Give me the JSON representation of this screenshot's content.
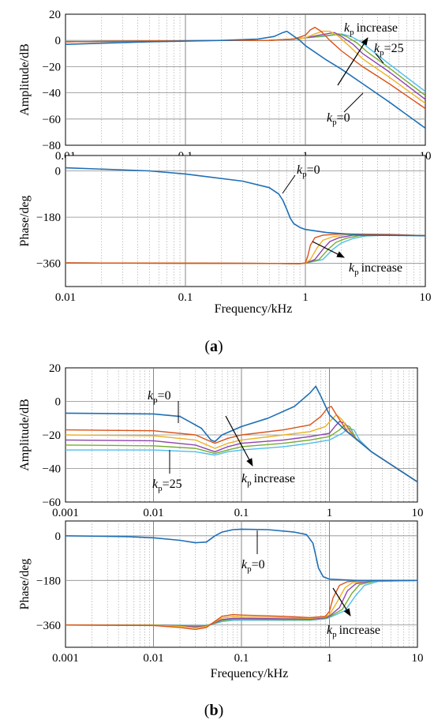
{
  "colors": {
    "kp0": "#1f6fb5",
    "series": [
      "#d95319",
      "#edb120",
      "#8e44ad",
      "#77ac30",
      "#4dbeee"
    ],
    "grid": "#9a9a9a",
    "axis": "#000000"
  },
  "chart_data": [
    {
      "panel": "a",
      "part": "amplitude",
      "type": "line",
      "xscale": "log",
      "xlim": [
        0.01,
        10
      ],
      "ylim": [
        -80,
        20
      ],
      "xticks": [
        "0.01",
        "0.1",
        "1",
        "10"
      ],
      "yticks": [
        "20",
        "0",
        "−20",
        "−40",
        "−60",
        "−80"
      ],
      "ylabel": "Amplitude/dB",
      "xlabel": "",
      "kp0": {
        "x": [
          0.01,
          0.05,
          0.2,
          0.4,
          0.55,
          0.65,
          0.7,
          0.78,
          0.9,
          1,
          1.5,
          2,
          3,
          5,
          10
        ],
        "y": [
          -3,
          -1,
          0,
          1,
          3,
          6,
          7,
          4,
          0,
          -4,
          -15,
          -22,
          -33,
          -47,
          -67
        ]
      },
      "others": [
        {
          "x": [
            0.01,
            0.2,
            0.5,
            0.8,
            1,
            1.1,
            1.2,
            1.35,
            1.6,
            2,
            3,
            5,
            10
          ],
          "y": [
            -1,
            0,
            0,
            1,
            4,
            8,
            10,
            7,
            0,
            -8,
            -20,
            -33,
            -52
          ]
        },
        {
          "x": [
            0.01,
            0.2,
            0.5,
            0.8,
            1,
            1.2,
            1.4,
            1.6,
            1.9,
            2.3,
            3,
            5,
            10
          ],
          "y": [
            -1,
            0,
            0,
            1,
            2,
            5,
            7,
            7,
            3,
            -4,
            -14,
            -28,
            -48
          ]
        },
        {
          "x": [
            0.01,
            0.2,
            0.5,
            0.8,
            1,
            1.3,
            1.5,
            1.75,
            2,
            2.5,
            3,
            5,
            10
          ],
          "y": [
            -1,
            0,
            0,
            1,
            2,
            4,
            5,
            6,
            3,
            -3,
            -10,
            -24,
            -45
          ]
        },
        {
          "x": [
            0.01,
            0.2,
            0.5,
            0.8,
            1,
            1.3,
            1.6,
            1.9,
            2.2,
            2.7,
            3.3,
            5,
            10
          ],
          "y": [
            -1,
            0,
            0,
            1,
            2,
            3,
            4,
            5,
            3,
            -2,
            -9,
            -21,
            -42
          ]
        },
        {
          "x": [
            0.01,
            0.2,
            0.5,
            0.8,
            1,
            1.4,
            1.7,
            2,
            2.4,
            2.9,
            3.5,
            5,
            10
          ],
          "y": [
            -1,
            0,
            0,
            1,
            2,
            3,
            4,
            5,
            3,
            -1,
            -7,
            -18,
            -39
          ]
        }
      ],
      "annotations": {
        "kp_increase": "increase",
        "kp25": "=25",
        "kp0": "=0",
        "k": "k",
        "p": "p"
      }
    },
    {
      "panel": "a",
      "part": "phase",
      "type": "line",
      "xscale": "log",
      "xlim": [
        0.01,
        10
      ],
      "ylim": [
        -450,
        60
      ],
      "xticks": [
        "0.01",
        "0.1",
        "1",
        "10"
      ],
      "yticks": [
        "0",
        "−180",
        "−360"
      ],
      "ylabel": "Phase/deg",
      "xlabel": "Frequency/kHz",
      "kp0": {
        "x": [
          0.01,
          0.05,
          0.1,
          0.3,
          0.5,
          0.6,
          0.65,
          0.7,
          0.75,
          0.8,
          0.9,
          1,
          1.5,
          3,
          10
        ],
        "y": [
          12,
          0,
          -12,
          -40,
          -65,
          -90,
          -115,
          -150,
          -185,
          -205,
          -220,
          -228,
          -240,
          -250,
          -252
        ]
      },
      "others": [
        {
          "x": [
            0.01,
            0.5,
            0.9,
            1,
            1.05,
            1.1,
            1.2,
            1.4,
            2,
            5,
            10
          ],
          "y": [
            -358,
            -360,
            -361,
            -358,
            -330,
            -290,
            -260,
            -250,
            -245,
            -247,
            -252
          ]
        },
        {
          "x": [
            0.01,
            0.5,
            0.9,
            1,
            1.1,
            1.25,
            1.4,
            1.7,
            2.2,
            5,
            10
          ],
          "y": [
            -358,
            -360,
            -361,
            -359,
            -345,
            -300,
            -270,
            -256,
            -248,
            -248,
            -252
          ]
        },
        {
          "x": [
            0.01,
            0.5,
            0.9,
            1,
            1.2,
            1.4,
            1.6,
            1.9,
            2.5,
            5,
            10
          ],
          "y": [
            -358,
            -360,
            -361,
            -359,
            -345,
            -305,
            -275,
            -260,
            -250,
            -249,
            -252
          ]
        },
        {
          "x": [
            0.01,
            0.5,
            0.9,
            1,
            1.3,
            1.55,
            1.8,
            2.2,
            2.8,
            5,
            10
          ],
          "y": [
            -358,
            -360,
            -361,
            -359,
            -345,
            -305,
            -278,
            -262,
            -252,
            -250,
            -252
          ]
        },
        {
          "x": [
            0.01,
            0.5,
            0.9,
            1,
            1.4,
            1.7,
            2,
            2.5,
            3.2,
            5,
            10
          ],
          "y": [
            -358,
            -360,
            -361,
            -359,
            -345,
            -305,
            -280,
            -263,
            -253,
            -250,
            -252
          ]
        }
      ],
      "annotations": {
        "kp0": "=0",
        "kp_increase": "increase",
        "k": "k",
        "p": "p"
      }
    },
    {
      "panel": "b",
      "part": "amplitude",
      "type": "line",
      "xscale": "log",
      "xlim": [
        0.001,
        10
      ],
      "ylim": [
        -60,
        20
      ],
      "xticks": [
        "0.001",
        "0.01",
        "0.1",
        "1",
        "10"
      ],
      "yticks": [
        "20",
        "0",
        "−20",
        "−40",
        "−60"
      ],
      "ylabel": "Amplitude/dB",
      "xlabel": "",
      "kp0": {
        "x": [
          0.001,
          0.01,
          0.02,
          0.035,
          0.045,
          0.05,
          0.06,
          0.1,
          0.2,
          0.4,
          0.6,
          0.7,
          0.8,
          1,
          1.5,
          3,
          10
        ],
        "y": [
          -7,
          -7.5,
          -9,
          -16,
          -23,
          -24,
          -20,
          -15,
          -10,
          -3,
          5,
          9,
          3,
          -8,
          -17,
          -30,
          -48
        ]
      },
      "others": [
        {
          "x": [
            0.001,
            0.01,
            0.03,
            0.05,
            0.07,
            0.1,
            0.3,
            0.6,
            0.8,
            0.95,
            1.05,
            1.2,
            1.6,
            3,
            10
          ],
          "y": [
            -17,
            -17.5,
            -20,
            -25,
            -22,
            -20,
            -17,
            -14,
            -9,
            -4,
            -3,
            -8,
            -18,
            -30,
            -48
          ]
        },
        {
          "x": [
            0.001,
            0.01,
            0.03,
            0.05,
            0.07,
            0.1,
            0.3,
            0.6,
            0.9,
            1.05,
            1.2,
            1.4,
            1.8,
            3,
            10
          ],
          "y": [
            -20,
            -20.5,
            -23,
            -28,
            -25,
            -23,
            -20,
            -18,
            -15,
            -11,
            -8,
            -11,
            -20,
            -30,
            -48
          ]
        },
        {
          "x": [
            0.001,
            0.01,
            0.03,
            0.05,
            0.07,
            0.1,
            0.3,
            0.6,
            1,
            1.15,
            1.3,
            1.5,
            1.9,
            3,
            10
          ],
          "y": [
            -23,
            -23.5,
            -26,
            -30,
            -27,
            -25,
            -23,
            -21,
            -19,
            -15,
            -12,
            -13,
            -21,
            -30,
            -48
          ]
        },
        {
          "x": [
            0.001,
            0.01,
            0.03,
            0.05,
            0.07,
            0.1,
            0.3,
            0.6,
            1,
            1.3,
            1.5,
            1.7,
            2,
            3,
            10
          ],
          "y": [
            -26,
            -26.5,
            -28,
            -31,
            -29,
            -27,
            -25,
            -23,
            -21,
            -17,
            -14,
            -15,
            -22,
            -30,
            -48
          ]
        },
        {
          "x": [
            0.001,
            0.01,
            0.03,
            0.05,
            0.07,
            0.1,
            0.3,
            0.6,
            1,
            1.4,
            1.65,
            1.9,
            2.2,
            3,
            10
          ],
          "y": [
            -29,
            -29,
            -30,
            -32,
            -30,
            -29,
            -27,
            -25,
            -23,
            -19,
            -16,
            -17,
            -23,
            -30,
            -48
          ]
        }
      ],
      "annotations": {
        "kp0": "=0",
        "kp25": "=25",
        "kp_increase": "increase",
        "k": "k",
        "p": "p"
      }
    },
    {
      "panel": "b",
      "part": "phase",
      "type": "line",
      "xscale": "log",
      "xlim": [
        0.001,
        10
      ],
      "ylim": [
        -450,
        60
      ],
      "xticks": [
        "0.001",
        "0.01",
        "0.1",
        "1",
        "10"
      ],
      "yticks": [
        "0",
        "−180",
        "−360"
      ],
      "ylabel": "Phase/deg",
      "xlabel": "Frequency/kHz",
      "kp0": {
        "x": [
          0.001,
          0.005,
          0.01,
          0.02,
          0.03,
          0.04,
          0.05,
          0.06,
          0.08,
          0.1,
          0.2,
          0.4,
          0.55,
          0.65,
          0.7,
          0.75,
          0.85,
          1,
          2,
          5,
          10
        ],
        "y": [
          0,
          -3,
          -8,
          -18,
          -28,
          -25,
          0,
          15,
          25,
          27,
          25,
          15,
          5,
          -30,
          -80,
          -130,
          -165,
          -175,
          -180,
          -180,
          -180
        ]
      },
      "others": [
        {
          "x": [
            0.001,
            0.01,
            0.02,
            0.03,
            0.04,
            0.05,
            0.06,
            0.08,
            0.1,
            0.3,
            0.6,
            0.9,
            1,
            1.1,
            1.3,
            1.6,
            2.5,
            10
          ],
          "y": [
            -360,
            -362,
            -370,
            -378,
            -370,
            -345,
            -325,
            -318,
            -320,
            -325,
            -330,
            -325,
            -305,
            -250,
            -200,
            -185,
            -180,
            -180
          ]
        },
        {
          "x": [
            0.001,
            0.01,
            0.02,
            0.03,
            0.04,
            0.05,
            0.06,
            0.08,
            0.1,
            0.3,
            0.6,
            0.9,
            1,
            1.2,
            1.5,
            1.8,
            2.8,
            10
          ],
          "y": [
            -360,
            -361,
            -365,
            -372,
            -366,
            -347,
            -332,
            -326,
            -327,
            -330,
            -333,
            -328,
            -318,
            -272,
            -210,
            -190,
            -181,
            -180
          ]
        },
        {
          "x": [
            0.001,
            0.01,
            0.02,
            0.03,
            0.04,
            0.05,
            0.06,
            0.08,
            0.1,
            0.3,
            0.6,
            0.9,
            1,
            1.3,
            1.6,
            2,
            3,
            10
          ],
          "y": [
            -360,
            -361,
            -363,
            -368,
            -364,
            -350,
            -338,
            -333,
            -333,
            -335,
            -336,
            -331,
            -324,
            -290,
            -222,
            -193,
            -182,
            -180
          ]
        },
        {
          "x": [
            0.001,
            0.01,
            0.02,
            0.03,
            0.04,
            0.05,
            0.06,
            0.08,
            0.1,
            0.3,
            0.6,
            0.9,
            1,
            1.4,
            1.8,
            2.2,
            3.3,
            10
          ],
          "y": [
            -360,
            -360,
            -362,
            -365,
            -362,
            -352,
            -342,
            -337,
            -337,
            -338,
            -339,
            -333,
            -327,
            -297,
            -232,
            -197,
            -183,
            -180
          ]
        },
        {
          "x": [
            0.001,
            0.01,
            0.02,
            0.03,
            0.04,
            0.05,
            0.06,
            0.08,
            0.1,
            0.3,
            0.6,
            0.9,
            1,
            1.5,
            2,
            2.5,
            3.6,
            10
          ],
          "y": [
            -360,
            -360,
            -361,
            -363,
            -361,
            -354,
            -346,
            -341,
            -340,
            -341,
            -341,
            -335,
            -330,
            -302,
            -240,
            -200,
            -184,
            -180
          ]
        }
      ],
      "annotations": {
        "kp0": "=0",
        "kp_increase": "increase",
        "k": "k",
        "p": "p"
      }
    }
  ],
  "captions": {
    "a": "a",
    "b": "b",
    "open": "(",
    "close": ")"
  }
}
